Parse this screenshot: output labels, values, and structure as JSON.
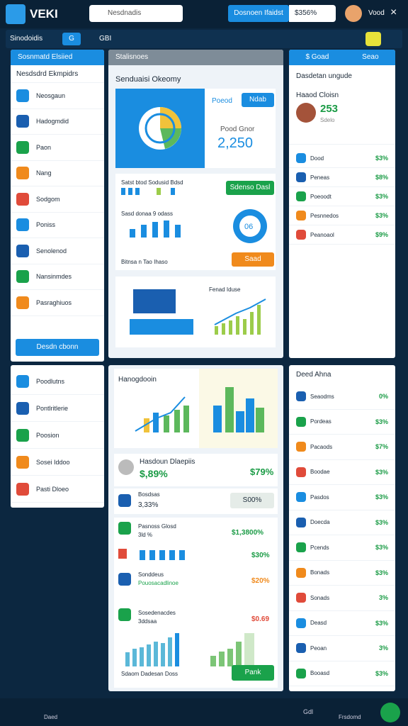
{
  "header": {
    "logo": "VEKI",
    "search": "Nesdnadis",
    "button": "Dosnoen Ifaidst",
    "balance": "$356%",
    "user": "Vood"
  },
  "toolbar": {
    "title": "Sinodoidis",
    "tab": "G",
    "item": "GBI"
  },
  "left_panel": {
    "header": "Sosnmatd Elsiied",
    "dropdown": "Nesdsdrd Ekmpidrs",
    "items": [
      "Neosgaun",
      "Hadogmdid",
      "Paon",
      "Nang",
      "Sodgom",
      "Poniss",
      "Senolenod",
      "Nansinmdes",
      "Pasraghiuos"
    ],
    "button": "Desdn cbonn"
  },
  "left_panel2": {
    "items": [
      "Poodlutns",
      "Pontlritlerie",
      "Poosion",
      "Sosei Iddoo",
      "Pasti Dloeo"
    ]
  },
  "middle_top": {
    "header": "Stalisnoes",
    "title": "Senduaisi Okeomy",
    "label": "Poeod",
    "badge": "Ndab",
    "stat_label": "Pood Gnor",
    "stat": "2,250",
    "bars_label": "Satst btod Sodusid Bdsd",
    "bars_button": "Sdenso Dasl",
    "chart_label": "Sasd donaa 9 odass",
    "gauge": "06",
    "footer": "Bitnsa n Tao Ihaso",
    "footer_button": "Saad",
    "growth_label": "Fenad Iduse"
  },
  "middle_bottom": {
    "chart_title": "Hanogdooin",
    "summary_title": "Hasdoun Dlaepiis",
    "summary_value": "$,89%",
    "summary_right": "$79%",
    "row1_label": "Bosdsas",
    "row1_value": "3,33%",
    "row1_badge": "S00%",
    "row2_label": "Pasnoss Glosd",
    "row2_sub": "3ld %",
    "row2_value": "$1,3800%",
    "row3_value": "$30%",
    "row4_label": "Sonddeus",
    "row4_sub": "Pouosacadlinoe",
    "row4_value": "$20%",
    "row5_label": "Sosedenacdes",
    "row5_sub": "3ddsaa",
    "row5_value": "$0.69",
    "footer": "Sdaom Dadesan Doss",
    "footer_button": "Pank"
  },
  "right_top": {
    "tab": "$ Goad",
    "tab2": "Seao",
    "title": "Dasdetan ungude",
    "profile": "Haaod Cloisn",
    "profile_value": "253",
    "profile_sub": "Sdelo",
    "rows": [
      [
        "Dood",
        "$3%"
      ],
      [
        "Peneas",
        "$8%"
      ],
      [
        "Poeoodt",
        "$3%"
      ],
      [
        "Pesnnedos",
        "$3%"
      ],
      [
        "Peanoaol",
        "$9%"
      ]
    ]
  },
  "right_bottom": {
    "title": "Deed Ahna",
    "rows": [
      [
        "Seaodms",
        "0%"
      ],
      [
        "Pordeas",
        "$3%"
      ],
      [
        "Pacaods",
        "$7%"
      ],
      [
        "Boodae",
        "$3%"
      ],
      [
        "Pasdos",
        "$3%"
      ],
      [
        "Doecda",
        "$3%"
      ],
      [
        "Pcends",
        "$3%"
      ],
      [
        "Bonads",
        "$3%"
      ],
      [
        "Sonads",
        "3%"
      ],
      [
        "Deasd",
        "$3%"
      ],
      [
        "Peoan",
        "3%"
      ],
      [
        "Booasd",
        "$3%"
      ]
    ]
  },
  "bottom_nav": {
    "left": "Daed",
    "mid": "Gdl",
    "right": "Frsdomd"
  }
}
